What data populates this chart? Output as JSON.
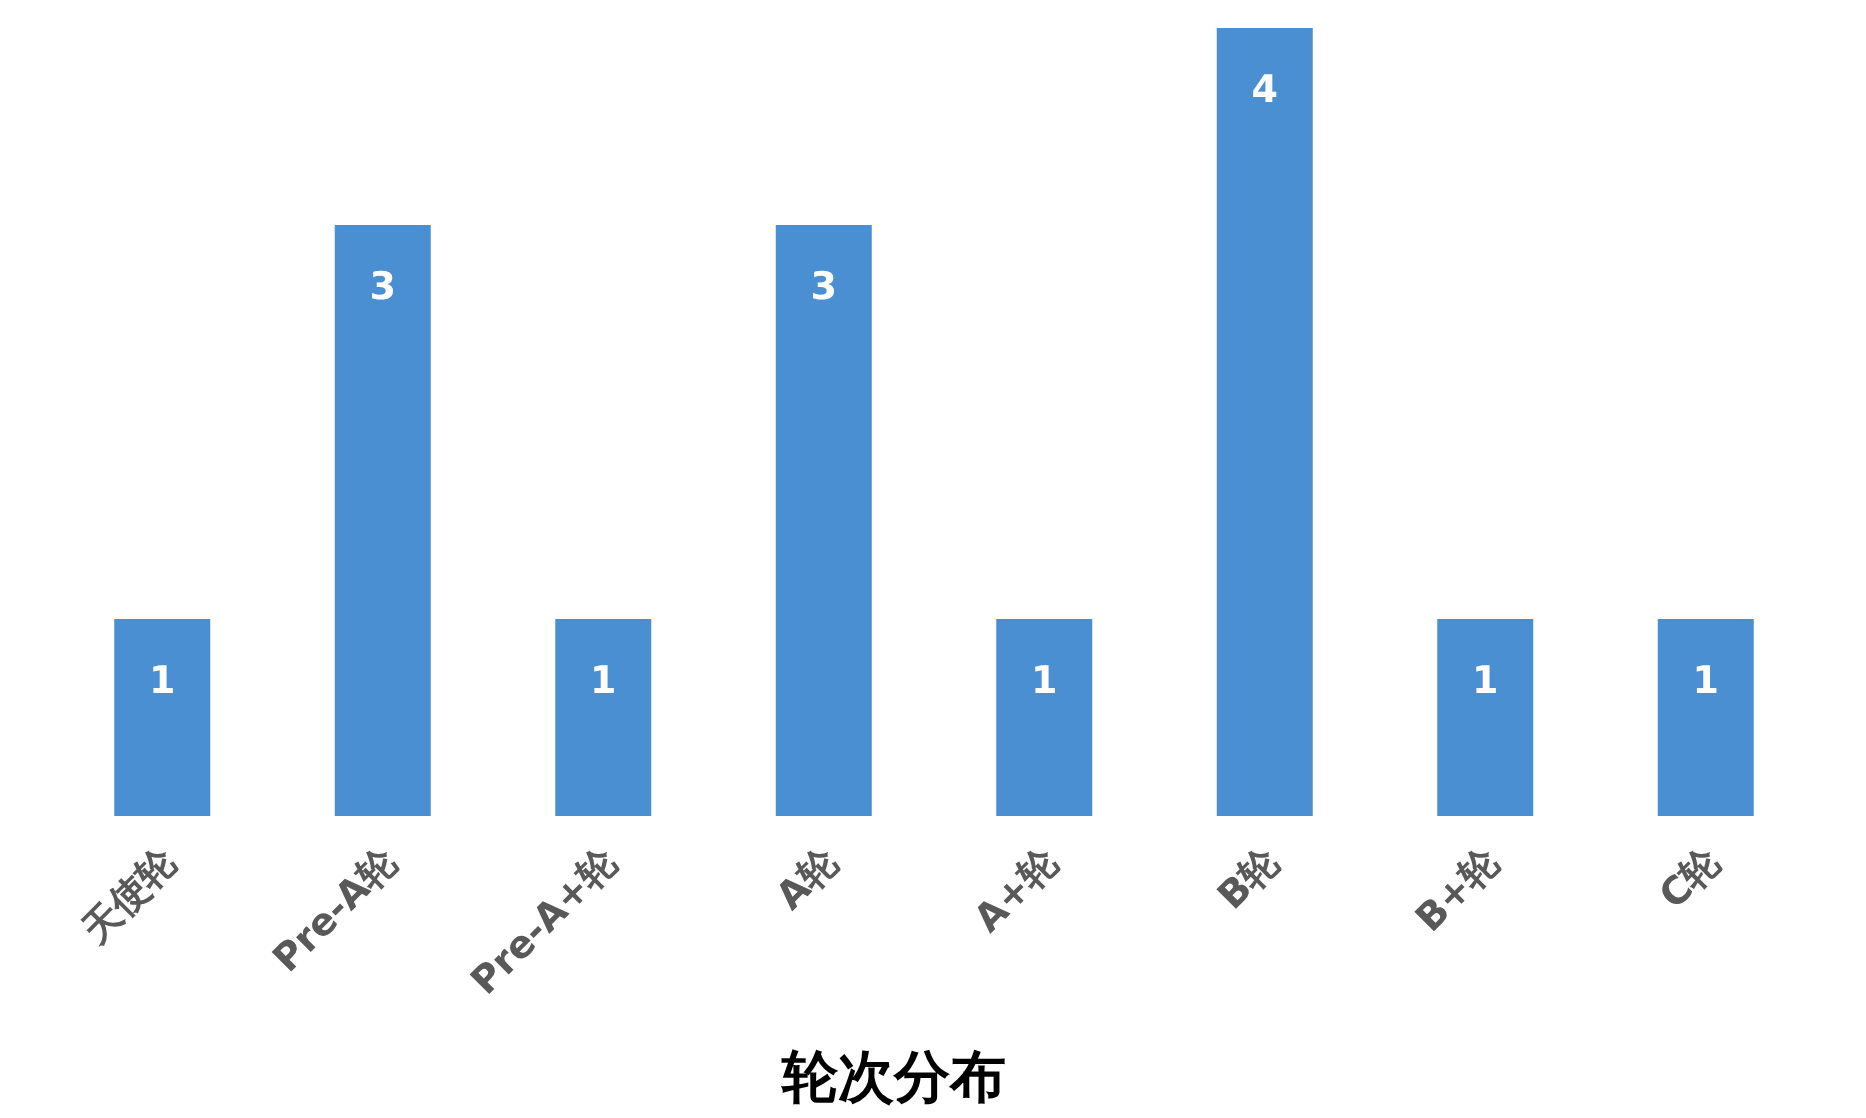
{
  "chart_data": {
    "type": "bar",
    "xlabel": "轮次分布",
    "categories": [
      "天使轮",
      "Pre-A轮",
      "Pre-A+轮",
      "A轮",
      "A+轮",
      "B轮",
      "B+轮",
      "C轮"
    ],
    "values": [
      1,
      3,
      1,
      3,
      1,
      4,
      1,
      1
    ],
    "color": "#4a8fd2",
    "data_labels": true
  }
}
